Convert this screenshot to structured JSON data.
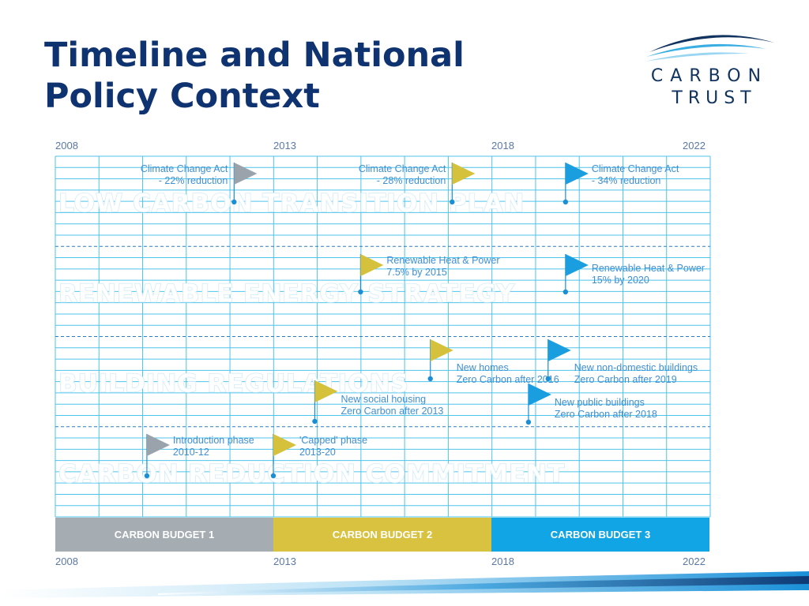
{
  "slide": {
    "title_line1": "Timeline and National",
    "title_line2": "Policy Context"
  },
  "logo": {
    "line1": "CARBON",
    "line2": "TRUST",
    "color": "#10335f",
    "arc_color": "#3aaee3"
  },
  "timeline": {
    "start_year": 2008,
    "end_year": 2022,
    "year_labels": [
      "2008",
      "2013",
      "2018",
      "2022"
    ],
    "rows": [
      {
        "label": "LOW CARBON TRANSITION PLAN"
      },
      {
        "label": "RENEWABLE ENERGY STRATEGY"
      },
      {
        "label": "BUILDING REGULATIONS"
      },
      {
        "label": "CARBON REDUCTION COMMITMENT"
      }
    ],
    "milestones": [
      {
        "row": 0,
        "year": 2012.1,
        "flag_color": "#9aa3ab",
        "lines": [
          "Climate Change Act",
          "- 22% reduction"
        ],
        "text_side": "left"
      },
      {
        "row": 0,
        "year": 2017.1,
        "flag_color": "#d6c13c",
        "lines": [
          "Climate Change Act",
          "- 28% reduction"
        ],
        "text_side": "left"
      },
      {
        "row": 0,
        "year": 2019.7,
        "flag_color": "#1a9ee0",
        "lines": [
          "Climate Change Act",
          "- 34% reduction"
        ],
        "text_side": "right"
      },
      {
        "row": 1,
        "year": 2015.0,
        "flag_color": "#d6c13c",
        "lines": [
          "Renewable Heat & Power",
          "7.5% by 2015"
        ],
        "text_side": "right"
      },
      {
        "row": 1,
        "year": 2019.7,
        "flag_color": "#1a9ee0",
        "lines": [
          "Renewable Heat & Power",
          "15% by 2020"
        ],
        "text_side": "right"
      },
      {
        "row": 2,
        "year": 2016.6,
        "flag_color": "#d6c13c",
        "lines": [
          "New homes",
          "Zero Carbon after 2016"
        ],
        "text_side": "right"
      },
      {
        "row": 2,
        "year": 2019.3,
        "flag_color": "#1a9ee0",
        "lines": [
          "New non-domestic buildings",
          "Zero Carbon after 2019"
        ],
        "text_side": "right"
      },
      {
        "row": 2,
        "year": 2013.95,
        "flag_color": "#d6c13c",
        "lines": [
          "New social housing",
          "Zero Carbon after 2013"
        ],
        "text_side": "right"
      },
      {
        "row": 2,
        "year": 2018.85,
        "flag_color": "#1a9ee0",
        "lines": [
          "New public buildings",
          "Zero Carbon after 2018"
        ],
        "text_side": "right"
      },
      {
        "row": 3,
        "year": 2010.1,
        "flag_color": "#9aa3ab",
        "lines": [
          "Introduction phase",
          "2010-12"
        ],
        "text_side": "right"
      },
      {
        "row": 3,
        "year": 2013.0,
        "flag_color": "#d6c13c",
        "lines": [
          "'Capped' phase",
          "2013-20"
        ],
        "text_side": "right"
      }
    ],
    "budgets": [
      {
        "label": "CARBON BUDGET 1",
        "start": 2008,
        "end": 2013,
        "color": "#a5adb2"
      },
      {
        "label": "CARBON BUDGET 2",
        "start": 2013,
        "end": 2018,
        "color": "#d8c240"
      },
      {
        "label": "CARBON BUDGET 3",
        "start": 2018,
        "end": 2023,
        "color": "#12a5e6"
      }
    ],
    "grid_color": "#4ec3ec"
  }
}
